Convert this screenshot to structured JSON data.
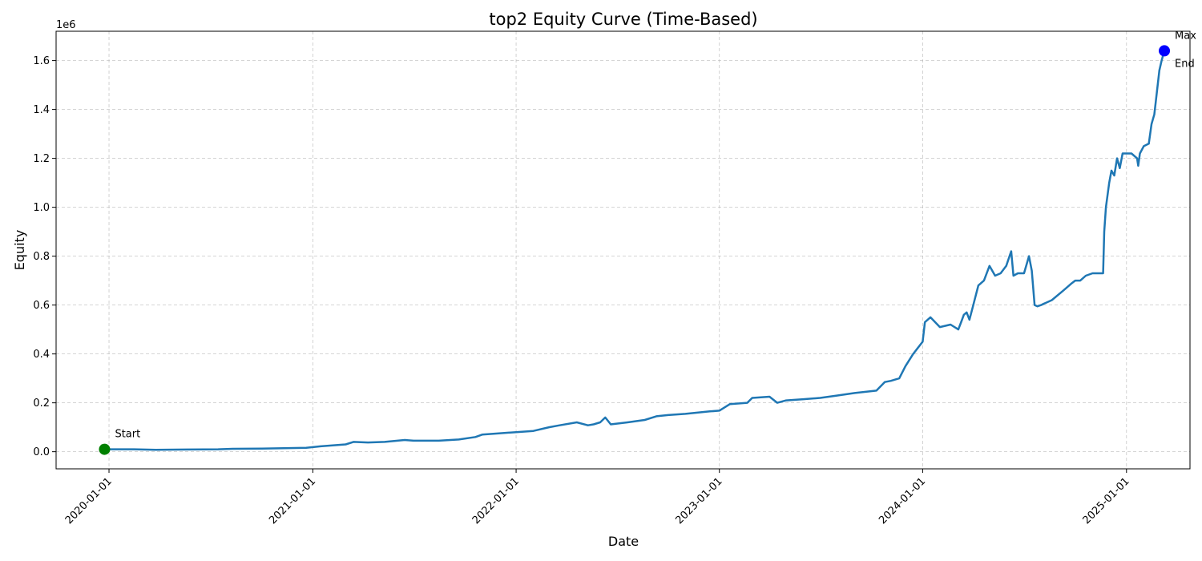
{
  "chart_data": {
    "type": "line",
    "title": "top2 Equity Curve (Time-Based)",
    "xlabel": "Date",
    "ylabel": "Equity",
    "y_offset_text": "1e6",
    "ylim": [
      -70000,
      1720000
    ],
    "xlim": [
      "2019-09-28",
      "2025-04-25"
    ],
    "grid": true,
    "grid_style": "dashed",
    "line_color": "#1f77b4",
    "x_ticks": [
      "2020-01-01",
      "2021-01-01",
      "2022-01-01",
      "2023-01-01",
      "2024-01-01",
      "2025-01-01"
    ],
    "y_ticks": [
      0,
      200000,
      400000,
      600000,
      800000,
      1000000,
      1200000,
      1400000,
      1600000
    ],
    "y_tick_labels": [
      "0.0",
      "0.2",
      "0.4",
      "0.6",
      "0.8",
      "1.0",
      "1.2",
      "1.4",
      "1.6"
    ],
    "series": [
      {
        "x": [
          "2019-12-24",
          "2020-02-15",
          "2020-03-25",
          "2020-05-20",
          "2020-07-15",
          "2020-08-10",
          "2020-10-01",
          "2020-12-20",
          "2021-01-15",
          "2021-03-01",
          "2021-03-15",
          "2021-04-10",
          "2021-05-10",
          "2021-06-15",
          "2021-07-01",
          "2021-08-15",
          "2021-09-20",
          "2021-10-20",
          "2021-11-01",
          "2021-12-01",
          "2022-01-01",
          "2022-02-01",
          "2022-03-01",
          "2022-03-20",
          "2022-04-20",
          "2022-05-10",
          "2022-05-20",
          "2022-06-01",
          "2022-06-10",
          "2022-06-20",
          "2022-07-20",
          "2022-08-20",
          "2022-09-10",
          "2022-10-01",
          "2022-11-01",
          "2022-12-15",
          "2023-01-01",
          "2023-01-20",
          "2023-02-20",
          "2023-03-01",
          "2023-04-01",
          "2023-04-15",
          "2023-05-01",
          "2023-06-01",
          "2023-07-01",
          "2023-08-01",
          "2023-09-01",
          "2023-10-10",
          "2023-10-25",
          "2023-11-05",
          "2023-11-20",
          "2023-12-01",
          "2023-12-15",
          "2024-01-01",
          "2024-01-05",
          "2024-01-10",
          "2024-01-15",
          "2024-02-01",
          "2024-02-20",
          "2024-03-05",
          "2024-03-10",
          "2024-03-15",
          "2024-03-20",
          "2024-03-25",
          "2024-04-01",
          "2024-04-10",
          "2024-04-20",
          "2024-04-30",
          "2024-05-10",
          "2024-05-20",
          "2024-05-30",
          "2024-06-05",
          "2024-06-08",
          "2024-06-12",
          "2024-06-20",
          "2024-07-01",
          "2024-07-10",
          "2024-07-15",
          "2024-07-20",
          "2024-07-25",
          "2024-08-01",
          "2024-08-05",
          "2024-08-10",
          "2024-08-20",
          "2024-09-10",
          "2024-09-25",
          "2024-10-01",
          "2024-10-10",
          "2024-10-20",
          "2024-11-01",
          "2024-11-10",
          "2024-11-20",
          "2024-11-22",
          "2024-11-25",
          "2024-12-01",
          "2024-12-05",
          "2024-12-10",
          "2024-12-15",
          "2024-12-20",
          "2024-12-25",
          "2025-01-01",
          "2025-01-10",
          "2025-01-20",
          "2025-01-22",
          "2025-01-25",
          "2025-02-01",
          "2025-02-10",
          "2025-02-15",
          "2025-02-20",
          "2025-02-25",
          "2025-03-01",
          "2025-03-05",
          "2025-03-10"
        ],
        "y": [
          10000,
          10000,
          8000,
          9000,
          10000,
          12000,
          13000,
          16000,
          22000,
          30000,
          40000,
          38000,
          40000,
          48000,
          45000,
          45000,
          50000,
          60000,
          70000,
          75000,
          80000,
          85000,
          100000,
          108000,
          120000,
          108000,
          112000,
          120000,
          140000,
          112000,
          120000,
          130000,
          145000,
          150000,
          155000,
          165000,
          168000,
          195000,
          200000,
          220000,
          225000,
          200000,
          210000,
          215000,
          220000,
          230000,
          240000,
          250000,
          285000,
          290000,
          300000,
          350000,
          400000,
          450000,
          530000,
          540000,
          550000,
          510000,
          520000,
          500000,
          530000,
          560000,
          570000,
          540000,
          600000,
          680000,
          700000,
          760000,
          720000,
          730000,
          760000,
          800000,
          820000,
          720000,
          730000,
          730000,
          800000,
          740000,
          600000,
          595000,
          600000,
          605000,
          610000,
          620000,
          660000,
          690000,
          700000,
          700000,
          720000,
          730000,
          730000,
          730000,
          900000,
          1000000,
          1100000,
          1150000,
          1130000,
          1200000,
          1160000,
          1220000,
          1220000,
          1220000,
          1200000,
          1170000,
          1220000,
          1250000,
          1260000,
          1340000,
          1380000,
          1480000,
          1560000,
          1600000,
          1640000
        ]
      }
    ],
    "annotations": [
      {
        "label": "Start",
        "x": "2019-12-24",
        "y": 10000,
        "color": "#008000"
      },
      {
        "label": "Max",
        "x": "2025-03-10",
        "y": 1640000,
        "color": "#0000ff"
      },
      {
        "label": "End",
        "x": "2025-03-10",
        "y": 1640000,
        "color": "#0000ff"
      }
    ]
  }
}
